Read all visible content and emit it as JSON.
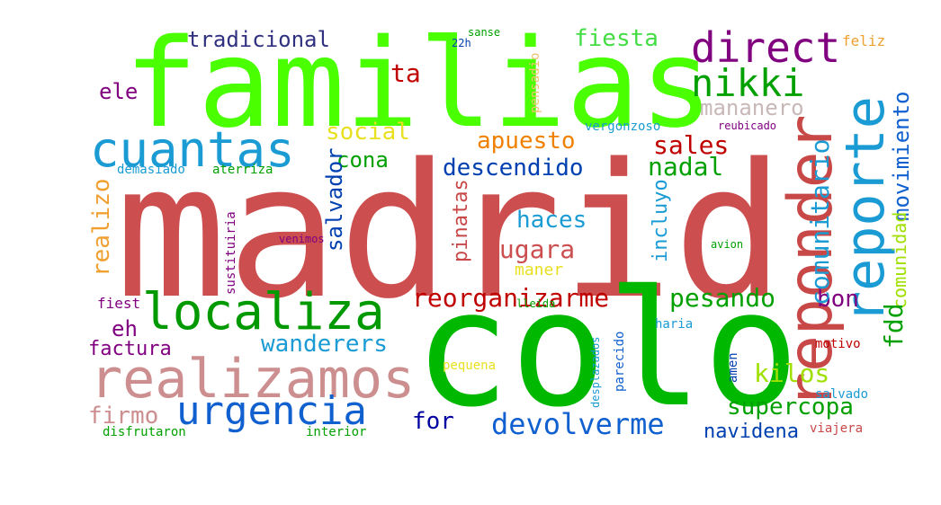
{
  "words": [
    {
      "text": "madrid",
      "color": "#cc4e4e"
    },
    {
      "text": "familias",
      "color": "#49ff00"
    },
    {
      "text": "colo",
      "color": "#00b800"
    },
    {
      "text": "reponder",
      "color": "#c84848"
    },
    {
      "text": "reporte",
      "color": "#1a9bd4"
    },
    {
      "text": "realizamos",
      "color": "#cc8e8e"
    },
    {
      "text": "localiza",
      "color": "#009a00"
    },
    {
      "text": "cuantas",
      "color": "#1a9bd4"
    },
    {
      "text": "direct",
      "color": "#800080"
    },
    {
      "text": "nikki",
      "color": "#00a000"
    },
    {
      "text": "urgencia",
      "color": "#1060d0"
    },
    {
      "text": "devolverme",
      "color": "#1060d0"
    },
    {
      "text": "tradicional",
      "color": "#303080"
    },
    {
      "text": "fiesta",
      "color": "#44dd44"
    },
    {
      "text": "mananero",
      "color": "#c8b8b8"
    },
    {
      "text": "social",
      "color": "#e8e020"
    },
    {
      "text": "apuesto",
      "color": "#f08000"
    },
    {
      "text": "sales",
      "color": "#c00000"
    },
    {
      "text": "descendido",
      "color": "#0040b0"
    },
    {
      "text": "nadal",
      "color": "#00a000"
    },
    {
      "text": "cona",
      "color": "#00a000"
    },
    {
      "text": "haces",
      "color": "#1a9bd4"
    },
    {
      "text": "jugara",
      "color": "#cc4e4e"
    },
    {
      "text": "reorganizarme",
      "color": "#c00000"
    },
    {
      "text": "pesando",
      "color": "#00a000"
    },
    {
      "text": "wanderers",
      "color": "#1a9bd4"
    },
    {
      "text": "kilos",
      "color": "#a0e000"
    },
    {
      "text": "supercopa",
      "color": "#00a000"
    },
    {
      "text": "for",
      "color": "#0000a0"
    },
    {
      "text": "firmo",
      "color": "#cc8e8e"
    },
    {
      "text": "navidena",
      "color": "#0040b0"
    },
    {
      "text": "factura",
      "color": "#800080"
    },
    {
      "text": "eh",
      "color": "#800080"
    },
    {
      "text": "bon",
      "color": "#800080"
    },
    {
      "text": "ele",
      "color": "#800080"
    },
    {
      "text": "ta",
      "color": "#c00000"
    },
    {
      "text": "comunitario",
      "color": "#1a9bd4"
    },
    {
      "text": "movimiento",
      "color": "#1060d0"
    },
    {
      "text": "comunidad",
      "color": "#a0e000"
    },
    {
      "text": "fdd",
      "color": "#00a000"
    },
    {
      "text": "realizo",
      "color": "#f0a030"
    },
    {
      "text": "salvador",
      "color": "#0040b0"
    },
    {
      "text": "pinatas",
      "color": "#c84848"
    },
    {
      "text": "incluyo",
      "color": "#1a9bd4"
    },
    {
      "text": "maner",
      "color": "#e8e020"
    },
    {
      "text": "feliz",
      "color": "#f0a030"
    },
    {
      "text": "pensadio",
      "color": "#f0c070"
    },
    {
      "text": "vergonzoso",
      "color": "#1a9bd4"
    },
    {
      "text": "reubicado",
      "color": "#800080"
    },
    {
      "text": "demasiado",
      "color": "#1a9bd4"
    },
    {
      "text": "aterriza",
      "color": "#00a000"
    },
    {
      "text": "venimos",
      "color": "#800080"
    },
    {
      "text": "sustituiria",
      "color": "#800080"
    },
    {
      "text": "lleida",
      "color": "#00a000"
    },
    {
      "text": "fiest",
      "color": "#800080"
    },
    {
      "text": "avion",
      "color": "#00a000"
    },
    {
      "text": "haria",
      "color": "#1a9bd4"
    },
    {
      "text": "motivo",
      "color": "#c00000"
    },
    {
      "text": "amen",
      "color": "#0040b0"
    },
    {
      "text": "salvado",
      "color": "#1a9bd4"
    },
    {
      "text": "viajera",
      "color": "#c84848"
    },
    {
      "text": "pequena",
      "color": "#e8e020"
    },
    {
      "text": "desplazados",
      "color": "#1a9bd4"
    },
    {
      "text": "parecido",
      "color": "#1060d0"
    },
    {
      "text": "interior",
      "color": "#00a000"
    },
    {
      "text": "disfrutaron",
      "color": "#00a000"
    },
    {
      "text": "sanse",
      "color": "#00a000"
    },
    {
      "text": "22h",
      "color": "#0040b0"
    }
  ]
}
